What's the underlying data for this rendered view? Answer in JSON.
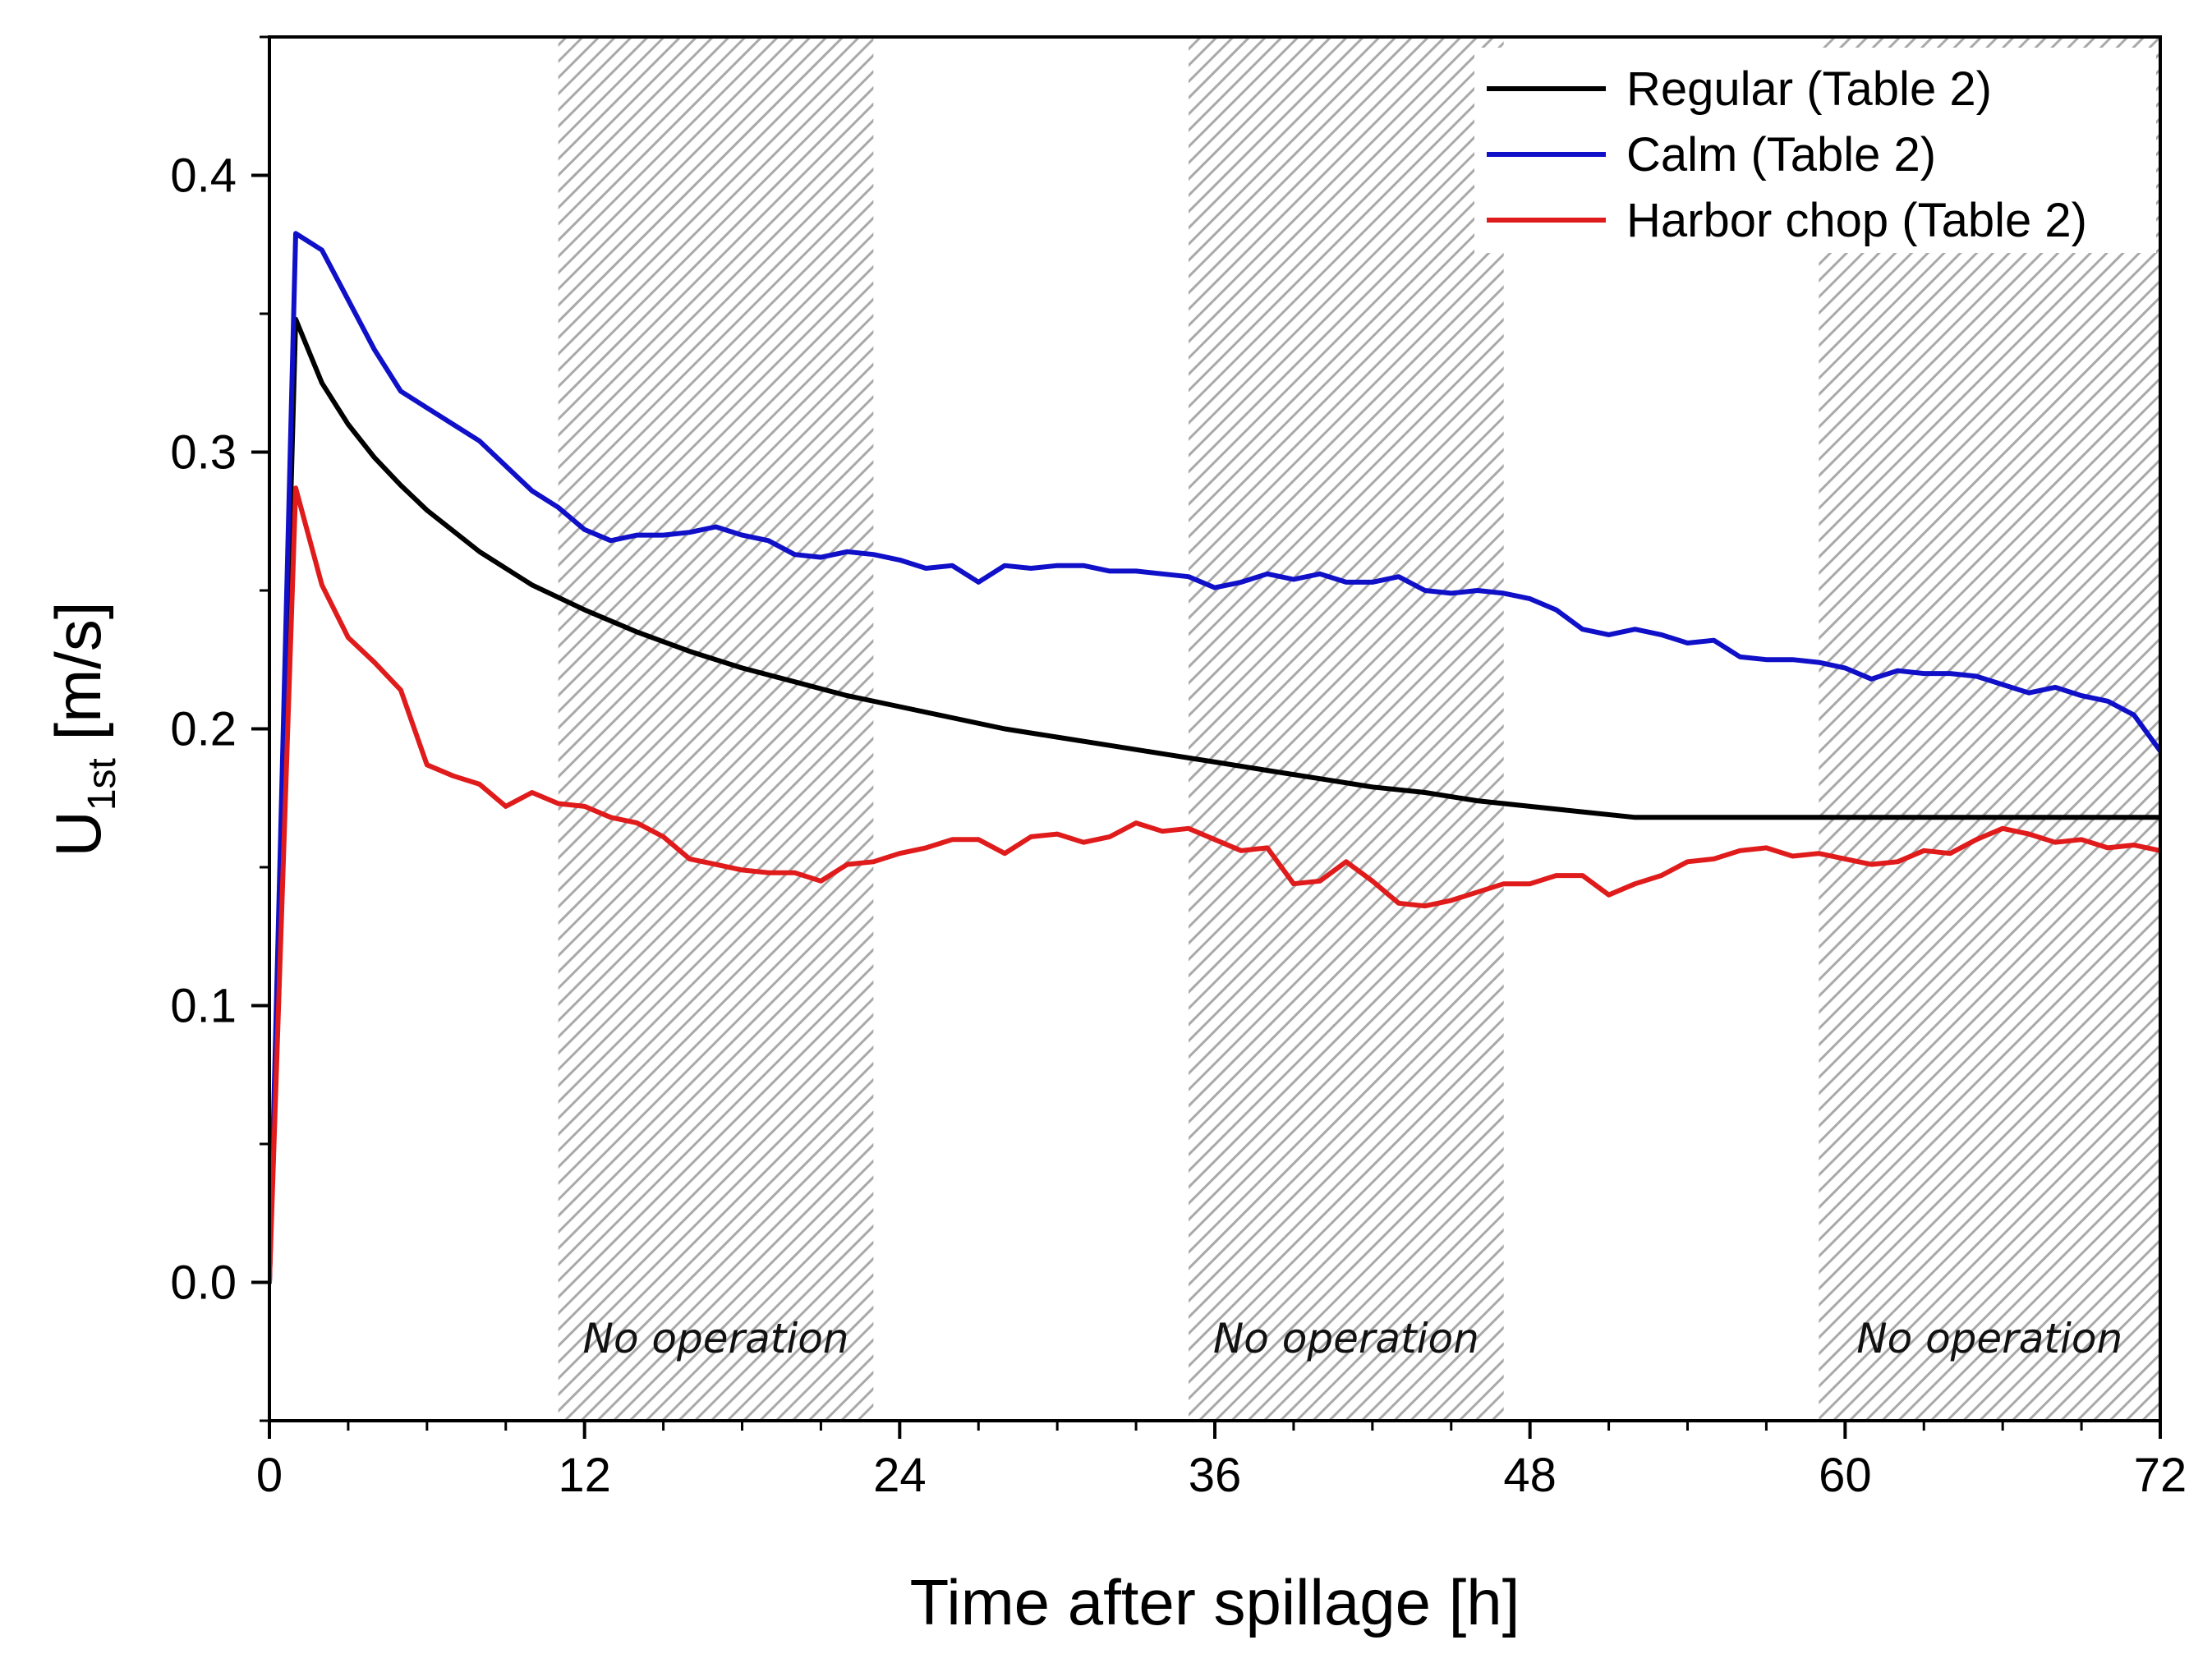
{
  "chart_data": {
    "type": "line",
    "title": "",
    "xlabel": "Time after spillage [h]",
    "ylabel": {
      "main": "U",
      "subscript": "1st",
      "unit": " [m/s]"
    },
    "xlim": [
      0,
      72
    ],
    "ylim": [
      -0.05,
      0.45
    ],
    "xticks": [
      0,
      12,
      24,
      36,
      48,
      60,
      72
    ],
    "xtick_labels": [
      "0",
      "12",
      "24",
      "36",
      "48",
      "60",
      "72"
    ],
    "yticks": [
      0.0,
      0.1,
      0.2,
      0.3,
      0.4
    ],
    "ytick_labels": [
      "0.0",
      "0.1",
      "0.2",
      "0.3",
      "0.4"
    ],
    "grid": false,
    "legend_position": "top-right",
    "shaded_regions": [
      {
        "x": [
          11,
          23
        ],
        "label": "No operation"
      },
      {
        "x": [
          35,
          47
        ],
        "label": "No operation"
      },
      {
        "x": [
          59,
          72
        ],
        "label": "No operation"
      }
    ],
    "series": [
      {
        "name": "Regular (Table 2)",
        "color": "#000000",
        "x": [
          0,
          1,
          2,
          3,
          4,
          5,
          6,
          8,
          10,
          12,
          14,
          16,
          18,
          20,
          22,
          24,
          26,
          28,
          30,
          32,
          34,
          36,
          38,
          40,
          42,
          44,
          46,
          48,
          50,
          52,
          54,
          56,
          60,
          64,
          68,
          72
        ],
        "y": [
          0.0,
          0.348,
          0.325,
          0.31,
          0.298,
          0.288,
          0.279,
          0.264,
          0.252,
          0.243,
          0.235,
          0.228,
          0.222,
          0.217,
          0.212,
          0.208,
          0.204,
          0.2,
          0.197,
          0.194,
          0.191,
          0.188,
          0.185,
          0.182,
          0.179,
          0.177,
          0.174,
          0.172,
          0.17,
          0.168,
          0.168,
          0.168,
          0.168,
          0.168,
          0.168,
          0.168
        ]
      },
      {
        "name": "Calm (Table 2)",
        "color": "#1010c8",
        "x": [
          0,
          1,
          2,
          3,
          4,
          5,
          6,
          7,
          8,
          9,
          10,
          11,
          12,
          13,
          14,
          15,
          16,
          17,
          18,
          19,
          20,
          21,
          22,
          23,
          24,
          25,
          26,
          27,
          28,
          29,
          30,
          31,
          32,
          33,
          34,
          35,
          36,
          37,
          38,
          39,
          40,
          41,
          42,
          43,
          44,
          45,
          46,
          47,
          48,
          49,
          50,
          51,
          52,
          53,
          54,
          55,
          56,
          57,
          58,
          59,
          60,
          61,
          62,
          63,
          64,
          65,
          66,
          67,
          68,
          69,
          70,
          71,
          72
        ],
        "y": [
          0.0,
          0.379,
          0.373,
          0.355,
          0.337,
          0.322,
          0.316,
          0.31,
          0.304,
          0.295,
          0.286,
          0.28,
          0.272,
          0.268,
          0.27,
          0.27,
          0.271,
          0.273,
          0.27,
          0.268,
          0.263,
          0.262,
          0.264,
          0.263,
          0.261,
          0.258,
          0.259,
          0.253,
          0.259,
          0.258,
          0.259,
          0.259,
          0.257,
          0.257,
          0.256,
          0.255,
          0.251,
          0.253,
          0.256,
          0.254,
          0.256,
          0.253,
          0.253,
          0.255,
          0.25,
          0.249,
          0.25,
          0.249,
          0.247,
          0.243,
          0.236,
          0.234,
          0.236,
          0.234,
          0.231,
          0.232,
          0.226,
          0.225,
          0.225,
          0.224,
          0.222,
          0.218,
          0.221,
          0.22,
          0.22,
          0.219,
          0.216,
          0.213,
          0.215,
          0.212,
          0.21,
          0.205,
          0.192
        ]
      },
      {
        "name": "Harbor chop (Table 2)",
        "color": "#e01b1b",
        "x": [
          0,
          1,
          2,
          3,
          4,
          5,
          6,
          7,
          8,
          9,
          10,
          11,
          12,
          13,
          14,
          15,
          16,
          17,
          18,
          19,
          20,
          21,
          22,
          23,
          24,
          25,
          26,
          27,
          28,
          29,
          30,
          31,
          32,
          33,
          34,
          35,
          36,
          37,
          38,
          39,
          40,
          41,
          42,
          43,
          44,
          45,
          46,
          47,
          48,
          49,
          50,
          51,
          52,
          53,
          54,
          55,
          56,
          57,
          58,
          59,
          60,
          61,
          62,
          63,
          64,
          65,
          66,
          67,
          68,
          69,
          70,
          71,
          72
        ],
        "y": [
          0.0,
          0.287,
          0.252,
          0.233,
          0.224,
          0.214,
          0.187,
          0.183,
          0.18,
          0.172,
          0.177,
          0.173,
          0.172,
          0.168,
          0.166,
          0.161,
          0.153,
          0.151,
          0.149,
          0.148,
          0.148,
          0.145,
          0.151,
          0.152,
          0.155,
          0.157,
          0.16,
          0.16,
          0.155,
          0.161,
          0.162,
          0.159,
          0.161,
          0.166,
          0.163,
          0.164,
          0.16,
          0.156,
          0.157,
          0.144,
          0.145,
          0.152,
          0.145,
          0.137,
          0.136,
          0.138,
          0.141,
          0.144,
          0.144,
          0.147,
          0.147,
          0.14,
          0.144,
          0.147,
          0.152,
          0.153,
          0.156,
          0.157,
          0.154,
          0.155,
          0.153,
          0.151,
          0.152,
          0.156,
          0.155,
          0.16,
          0.164,
          0.162,
          0.159,
          0.16,
          0.157,
          0.158,
          0.156
        ]
      }
    ]
  }
}
